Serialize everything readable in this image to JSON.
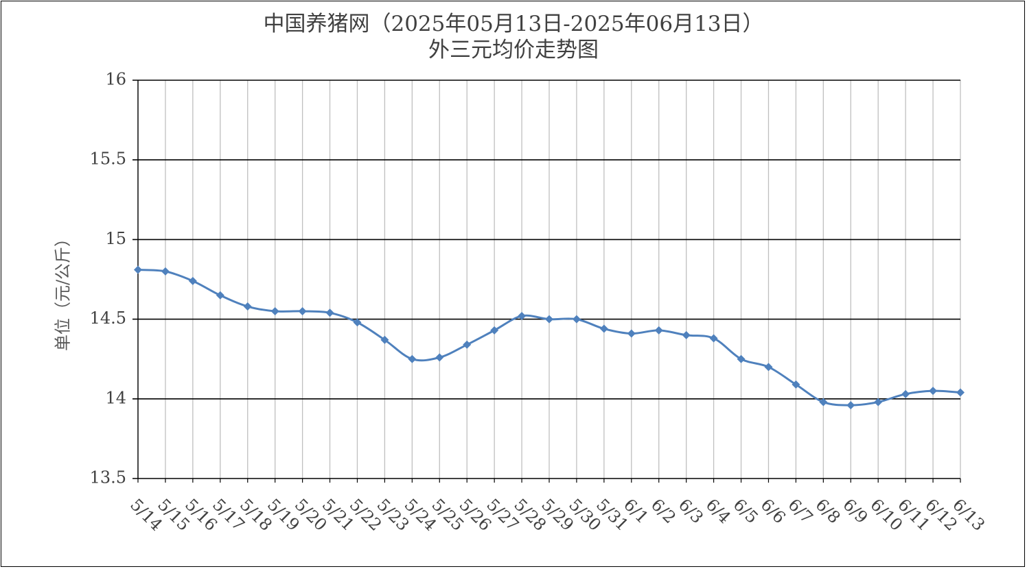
{
  "chart_data": {
    "type": "line",
    "title": "中国养猪网（2025年05月13日-2025年06月13日）",
    "subtitle": "外三元均价走势图",
    "xlabel": "",
    "ylabel": "单位（元/公斤）",
    "ylim": [
      13.5,
      16
    ],
    "yticks": [
      "13.5",
      "14",
      "14.5",
      "15",
      "15.5",
      "16"
    ],
    "grid": true,
    "legend": "none",
    "colors": {
      "line": "#4f81bd",
      "marker": "#4f81bd",
      "grid": "#000000",
      "vgrid": "#bfbfbf"
    },
    "categories": [
      "5/14",
      "5/15",
      "5/16",
      "5/17",
      "5/18",
      "5/19",
      "5/20",
      "5/21",
      "5/22",
      "5/23",
      "5/24",
      "5/25",
      "5/26",
      "5/27",
      "5/28",
      "5/29",
      "5/30",
      "5/31",
      "6/1",
      "6/2",
      "6/3",
      "6/4",
      "6/5",
      "6/6",
      "6/7",
      "6/8",
      "6/9",
      "6/10",
      "6/11",
      "6/12",
      "6/13"
    ],
    "series": [
      {
        "values": [
          14.81,
          14.8,
          14.74,
          14.65,
          14.58,
          14.55,
          14.55,
          14.54,
          14.48,
          14.37,
          14.25,
          14.26,
          14.34,
          14.43,
          14.52,
          14.5,
          14.5,
          14.44,
          14.41,
          14.43,
          14.4,
          14.38,
          14.25,
          14.2,
          14.09,
          13.98,
          13.96,
          13.98,
          14.03,
          14.05,
          14.04
        ]
      }
    ]
  }
}
